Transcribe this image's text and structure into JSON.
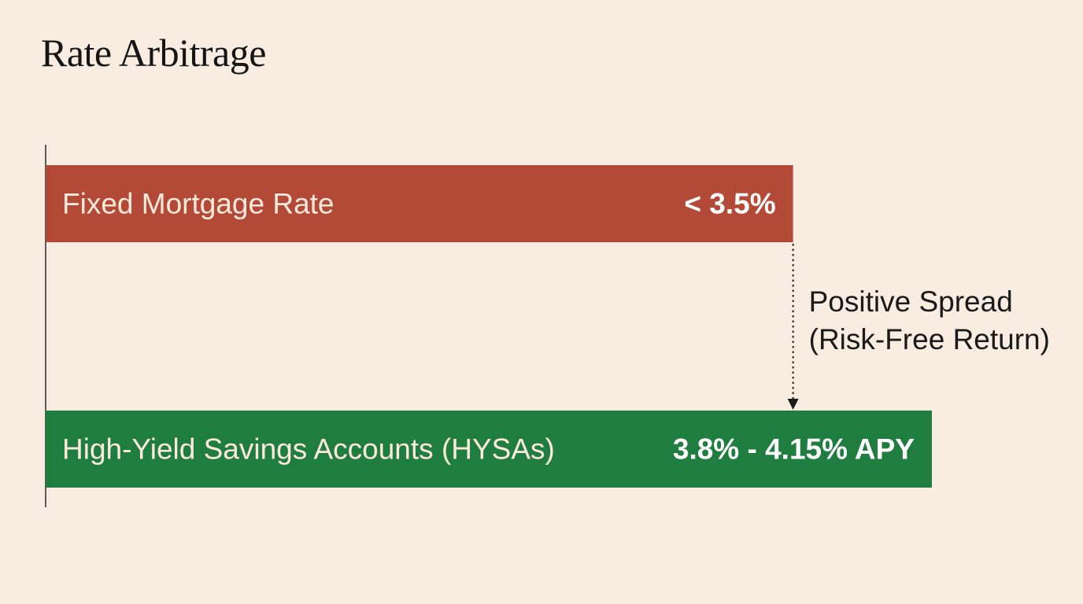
{
  "chart_data": {
    "type": "bar",
    "orientation": "horizontal",
    "title": "Rate Arbitrage",
    "categories": [
      "Fixed Mortgage Rate",
      "High-Yield Savings Accounts (HYSAs)"
    ],
    "values": [
      3.5,
      4.15
    ],
    "value_labels": [
      "< 3.5%",
      "3.8% - 4.15% APY"
    ],
    "xlim": [
      0,
      4.15
    ],
    "grid": false,
    "colors": [
      "#b34a37",
      "#1f7d3f"
    ],
    "annotation": {
      "line1": "Positive Spread",
      "line2": "(Risk-Free Return)"
    }
  }
}
